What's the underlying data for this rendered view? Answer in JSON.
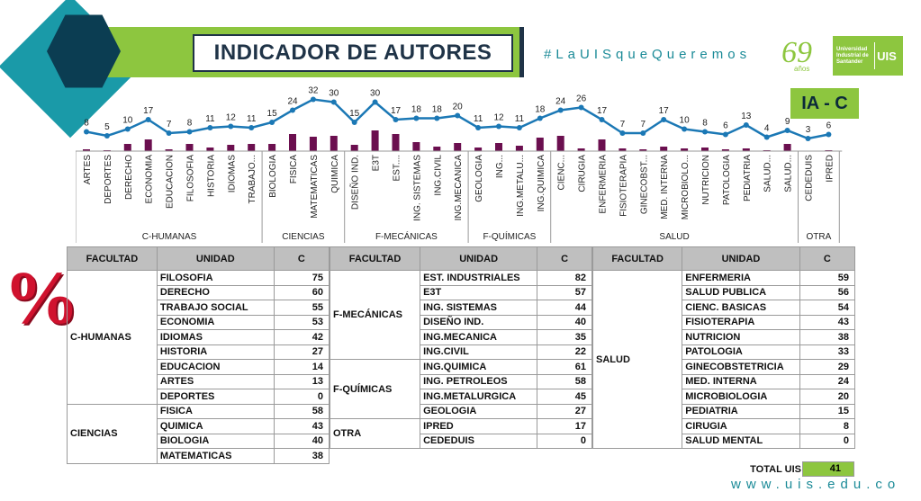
{
  "header": {
    "title": "INDICADOR DE AUTORES",
    "hashtag": "#LaUISqueQueremos",
    "anniversary": "69",
    "anniversary_unit": "años",
    "uni_name": "Universidad Industrial de Santander",
    "uni_abbr": "UIS"
  },
  "badge": "IA - C",
  "percent_symbol": "%",
  "website": "www.uis.edu.co",
  "colors": {
    "green": "#8dc63f",
    "teal": "#1a9aa8",
    "navy": "#0b3d52",
    "bar": "#6b0f4f",
    "line": "#1b78b5",
    "red": "#d0122e"
  },
  "chart_data": {
    "type": "bar+line",
    "categories": [
      "ARTES",
      "DEPORTES",
      "DERECHO",
      "ECONOMIA",
      "EDUCACION",
      "FILOSOFIA",
      "HISTORIA",
      "IDIOMAS",
      "TRABAJO...",
      "BIOLOGIA",
      "FISICA",
      "MATEMATICAS",
      "QUIMICA",
      "DISEÑO IND.",
      "E3T",
      "EST....",
      "ING. SISTEMAS",
      "ING.CIVIL",
      "ING.MECANICA",
      "GEOLOGIA",
      "ING...",
      "ING.METALU...",
      "ING.QUIMICA",
      "CIENC...",
      "CIRUGIA",
      "ENFERMERIA",
      "FISIOTERAPIA",
      "GINECOBST...",
      "MED. INTERNA",
      "MICROBIOLO...",
      "NUTRICION",
      "PATOLOGIA",
      "PEDIATRIA",
      "SALUD...",
      "SALUD...",
      "CEDEDUIS",
      "IPRED"
    ],
    "line_values": [
      8,
      5,
      10,
      17,
      7,
      8,
      11,
      12,
      11,
      15,
      24,
      32,
      30,
      15,
      30,
      17,
      18,
      18,
      20,
      11,
      12,
      11,
      18,
      24,
      26,
      17,
      7,
      7,
      17,
      10,
      8,
      6,
      13,
      4,
      9,
      3,
      6
    ],
    "bar_values": [
      2,
      1,
      8,
      13,
      2,
      8,
      4,
      7,
      8,
      8,
      19,
      16,
      17,
      7,
      23,
      19,
      10,
      5,
      9,
      4,
      9,
      6,
      15,
      17,
      3,
      13,
      3,
      2,
      5,
      3,
      4,
      2,
      3,
      1,
      8,
      0,
      1
    ],
    "groups": [
      {
        "label": "C-HUMANAS",
        "count": 9
      },
      {
        "label": "CIENCIAS",
        "count": 4
      },
      {
        "label": "F-MECÁNICAS",
        "count": 6
      },
      {
        "label": "F-QUÍMICAS",
        "count": 4
      },
      {
        "label": "SALUD",
        "count": 12
      },
      {
        "label": "OTRA",
        "count": 2
      }
    ],
    "ylim": [
      0,
      35
    ]
  },
  "table": {
    "headers": [
      "FACULTAD",
      "UNIDAD",
      "C"
    ],
    "col1": [
      {
        "facultad": "C-HUMANAS",
        "rows": [
          [
            "FILOSOFIA",
            "75"
          ],
          [
            "DERECHO",
            "60"
          ],
          [
            "TRABAJO SOCIAL",
            "55"
          ],
          [
            "ECONOMIA",
            "53"
          ],
          [
            "IDIOMAS",
            "42"
          ],
          [
            "HISTORIA",
            "27"
          ],
          [
            "EDUCACION",
            "14"
          ],
          [
            "ARTES",
            "13"
          ],
          [
            "DEPORTES",
            "0"
          ]
        ]
      },
      {
        "facultad": "CIENCIAS",
        "rows": [
          [
            "FISICA",
            "58"
          ],
          [
            "QUIMICA",
            "43"
          ],
          [
            "BIOLOGIA",
            "40"
          ],
          [
            "MATEMATICAS",
            "38"
          ]
        ]
      }
    ],
    "col2": [
      {
        "facultad": "F-MECÁNICAS",
        "rows": [
          [
            "EST. INDUSTRIALES",
            "82"
          ],
          [
            "E3T",
            "57"
          ],
          [
            "ING. SISTEMAS",
            "44"
          ],
          [
            "DISEÑO IND.",
            "40"
          ],
          [
            "ING.MECANICA",
            "35"
          ],
          [
            "ING.CIVIL",
            "22"
          ]
        ]
      },
      {
        "facultad": "F-QUÍMICAS",
        "rows": [
          [
            "ING.QUIMICA",
            "61"
          ],
          [
            "ING. PETROLEOS",
            "58"
          ],
          [
            "ING.METALURGICA",
            "45"
          ],
          [
            "GEOLOGIA",
            "27"
          ]
        ]
      },
      {
        "facultad": "OTRA",
        "rows": [
          [
            "IPRED",
            "17"
          ],
          [
            "CEDEDUIS",
            "0"
          ]
        ]
      }
    ],
    "col3": [
      {
        "facultad": "SALUD",
        "rows": [
          [
            "ENFERMERIA",
            "59"
          ],
          [
            "SALUD PUBLICA",
            "56"
          ],
          [
            "CIENC. BASICAS",
            "54"
          ],
          [
            "FISIOTERAPIA",
            "43"
          ],
          [
            "NUTRICION",
            "38"
          ],
          [
            "PATOLOGIA",
            "33"
          ],
          [
            "GINECOBSTETRICIA",
            "29"
          ],
          [
            "MED. INTERNA",
            "24"
          ],
          [
            "MICROBIOLOGIA",
            "20"
          ],
          [
            "PEDIATRIA",
            "15"
          ],
          [
            "CIRUGIA",
            "8"
          ],
          [
            "SALUD MENTAL",
            "0"
          ]
        ]
      }
    ],
    "total_label": "TOTAL UIS",
    "total_value": "41"
  }
}
